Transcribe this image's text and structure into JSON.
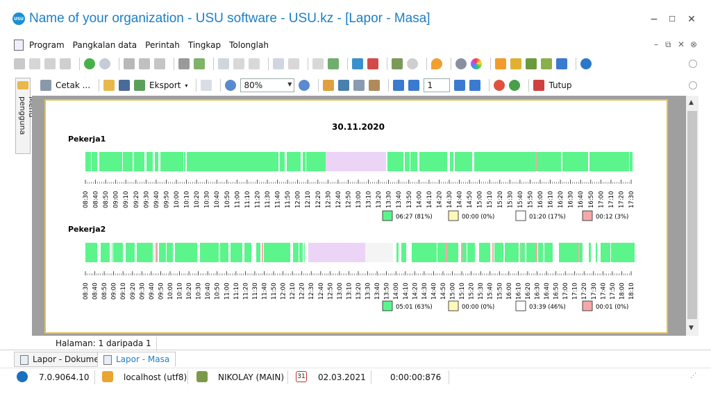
{
  "window": {
    "title": "Name of your organization - USU software - USU.kz - [Lapor - Masa]",
    "logo_text": "USU",
    "minimize": "−",
    "maximize": "☐",
    "close": "✕"
  },
  "menu": {
    "items": [
      "Program",
      "Pangkalan data",
      "Perintah",
      "Tingkap",
      "Tolonglah"
    ],
    "mdi_controls": [
      "–",
      "⧉",
      "✕",
      "⊗"
    ]
  },
  "toolbar2": {
    "print_label": "Cetak ...",
    "export_label": "Eksport",
    "zoom_value": "80%",
    "page_value": "1",
    "close_label": "Tutup"
  },
  "sidebar": {
    "tab_label": "Menu pengguna"
  },
  "report": {
    "date": "30.11.2020",
    "workers": [
      {
        "name": "Pekerja1",
        "time_ticks": [
          "08:30",
          "08:40",
          "08:50",
          "09:00",
          "09:10",
          "09:20",
          "09:30",
          "09:40",
          "09:50",
          "10:00",
          "10:10",
          "10:20",
          "10:30",
          "10:40",
          "10:50",
          "11:00",
          "11:10",
          "11:20",
          "11:30",
          "11:40",
          "11:50",
          "12:00",
          "12:10",
          "12:20",
          "12:30",
          "12:40",
          "12:50",
          "13:00",
          "13:10",
          "13:20",
          "13:30",
          "13:40",
          "13:50",
          "14:00",
          "14:10",
          "14:20",
          "14:30",
          "14:40",
          "14:50",
          "15:00",
          "15:10",
          "15:20",
          "15:30",
          "15:40",
          "15:50",
          "16:00",
          "16:10",
          "16:20",
          "16:30",
          "16:40",
          "16:50",
          "17:00",
          "17:10",
          "17:20",
          "17:30"
        ],
        "legend": [
          {
            "color": "#5bf58c",
            "value": "06:27 (81%)"
          },
          {
            "color": "#fff8b8",
            "value": "00:00 (0%)"
          },
          {
            "color": "#ffffff",
            "value": "01:20 (17%)"
          },
          {
            "color": "#f6a8a8",
            "value": "00:12 (3%)"
          }
        ]
      },
      {
        "name": "Pekerja2",
        "time_ticks": [
          "08:30",
          "08:40",
          "08:50",
          "09:00",
          "09:10",
          "09:20",
          "09:30",
          "09:40",
          "09:50",
          "10:00",
          "10:10",
          "10:20",
          "10:30",
          "10:40",
          "10:50",
          "11:00",
          "11:10",
          "11:20",
          "11:30",
          "11:40",
          "11:50",
          "12:00",
          "12:10",
          "12:20",
          "12:30",
          "12:40",
          "12:50",
          "13:00",
          "13:10",
          "13:20",
          "13:30",
          "13:40",
          "13:50",
          "14:00",
          "14:10",
          "14:20",
          "14:30",
          "14:40",
          "14:50",
          "15:00",
          "15:10",
          "15:20",
          "15:30",
          "15:40",
          "15:50",
          "16:00",
          "16:10",
          "16:20",
          "16:30",
          "16:40",
          "16:50",
          "17:00",
          "17:10",
          "17:20",
          "17:30",
          "17:40",
          "17:50",
          "18:00",
          "18:10"
        ],
        "legend": [
          {
            "color": "#5bf58c",
            "value": "05:01 (63%)"
          },
          {
            "color": "#fff8b8",
            "value": "00:00 (0%)"
          },
          {
            "color": "#ffffff",
            "value": "03:39 (46%)"
          },
          {
            "color": "#f6a8a8",
            "value": "00:01 (0%)"
          }
        ]
      }
    ]
  },
  "pager": {
    "text": "Halaman: 1 daripada 1"
  },
  "doc_tabs": [
    {
      "label": "Lapor - Dokumen",
      "active": false
    },
    {
      "label": "Lapor - Masa",
      "active": true
    }
  ],
  "status": {
    "version": "7.0.9064.10",
    "database": "localhost (utf8)",
    "user": "NIKOLAY (MAIN)",
    "calendar_day": "31",
    "date": "02.03.2021",
    "timer": "0:00:00:876"
  },
  "colors": {
    "active": "#5bf58c",
    "idle": "#fff8b8",
    "absent": "#ffffff",
    "break": "#f6a8a8",
    "lunch": "#ecd4f7",
    "nodata": "#f4f4f4",
    "accent": "#1b7fc6"
  }
}
